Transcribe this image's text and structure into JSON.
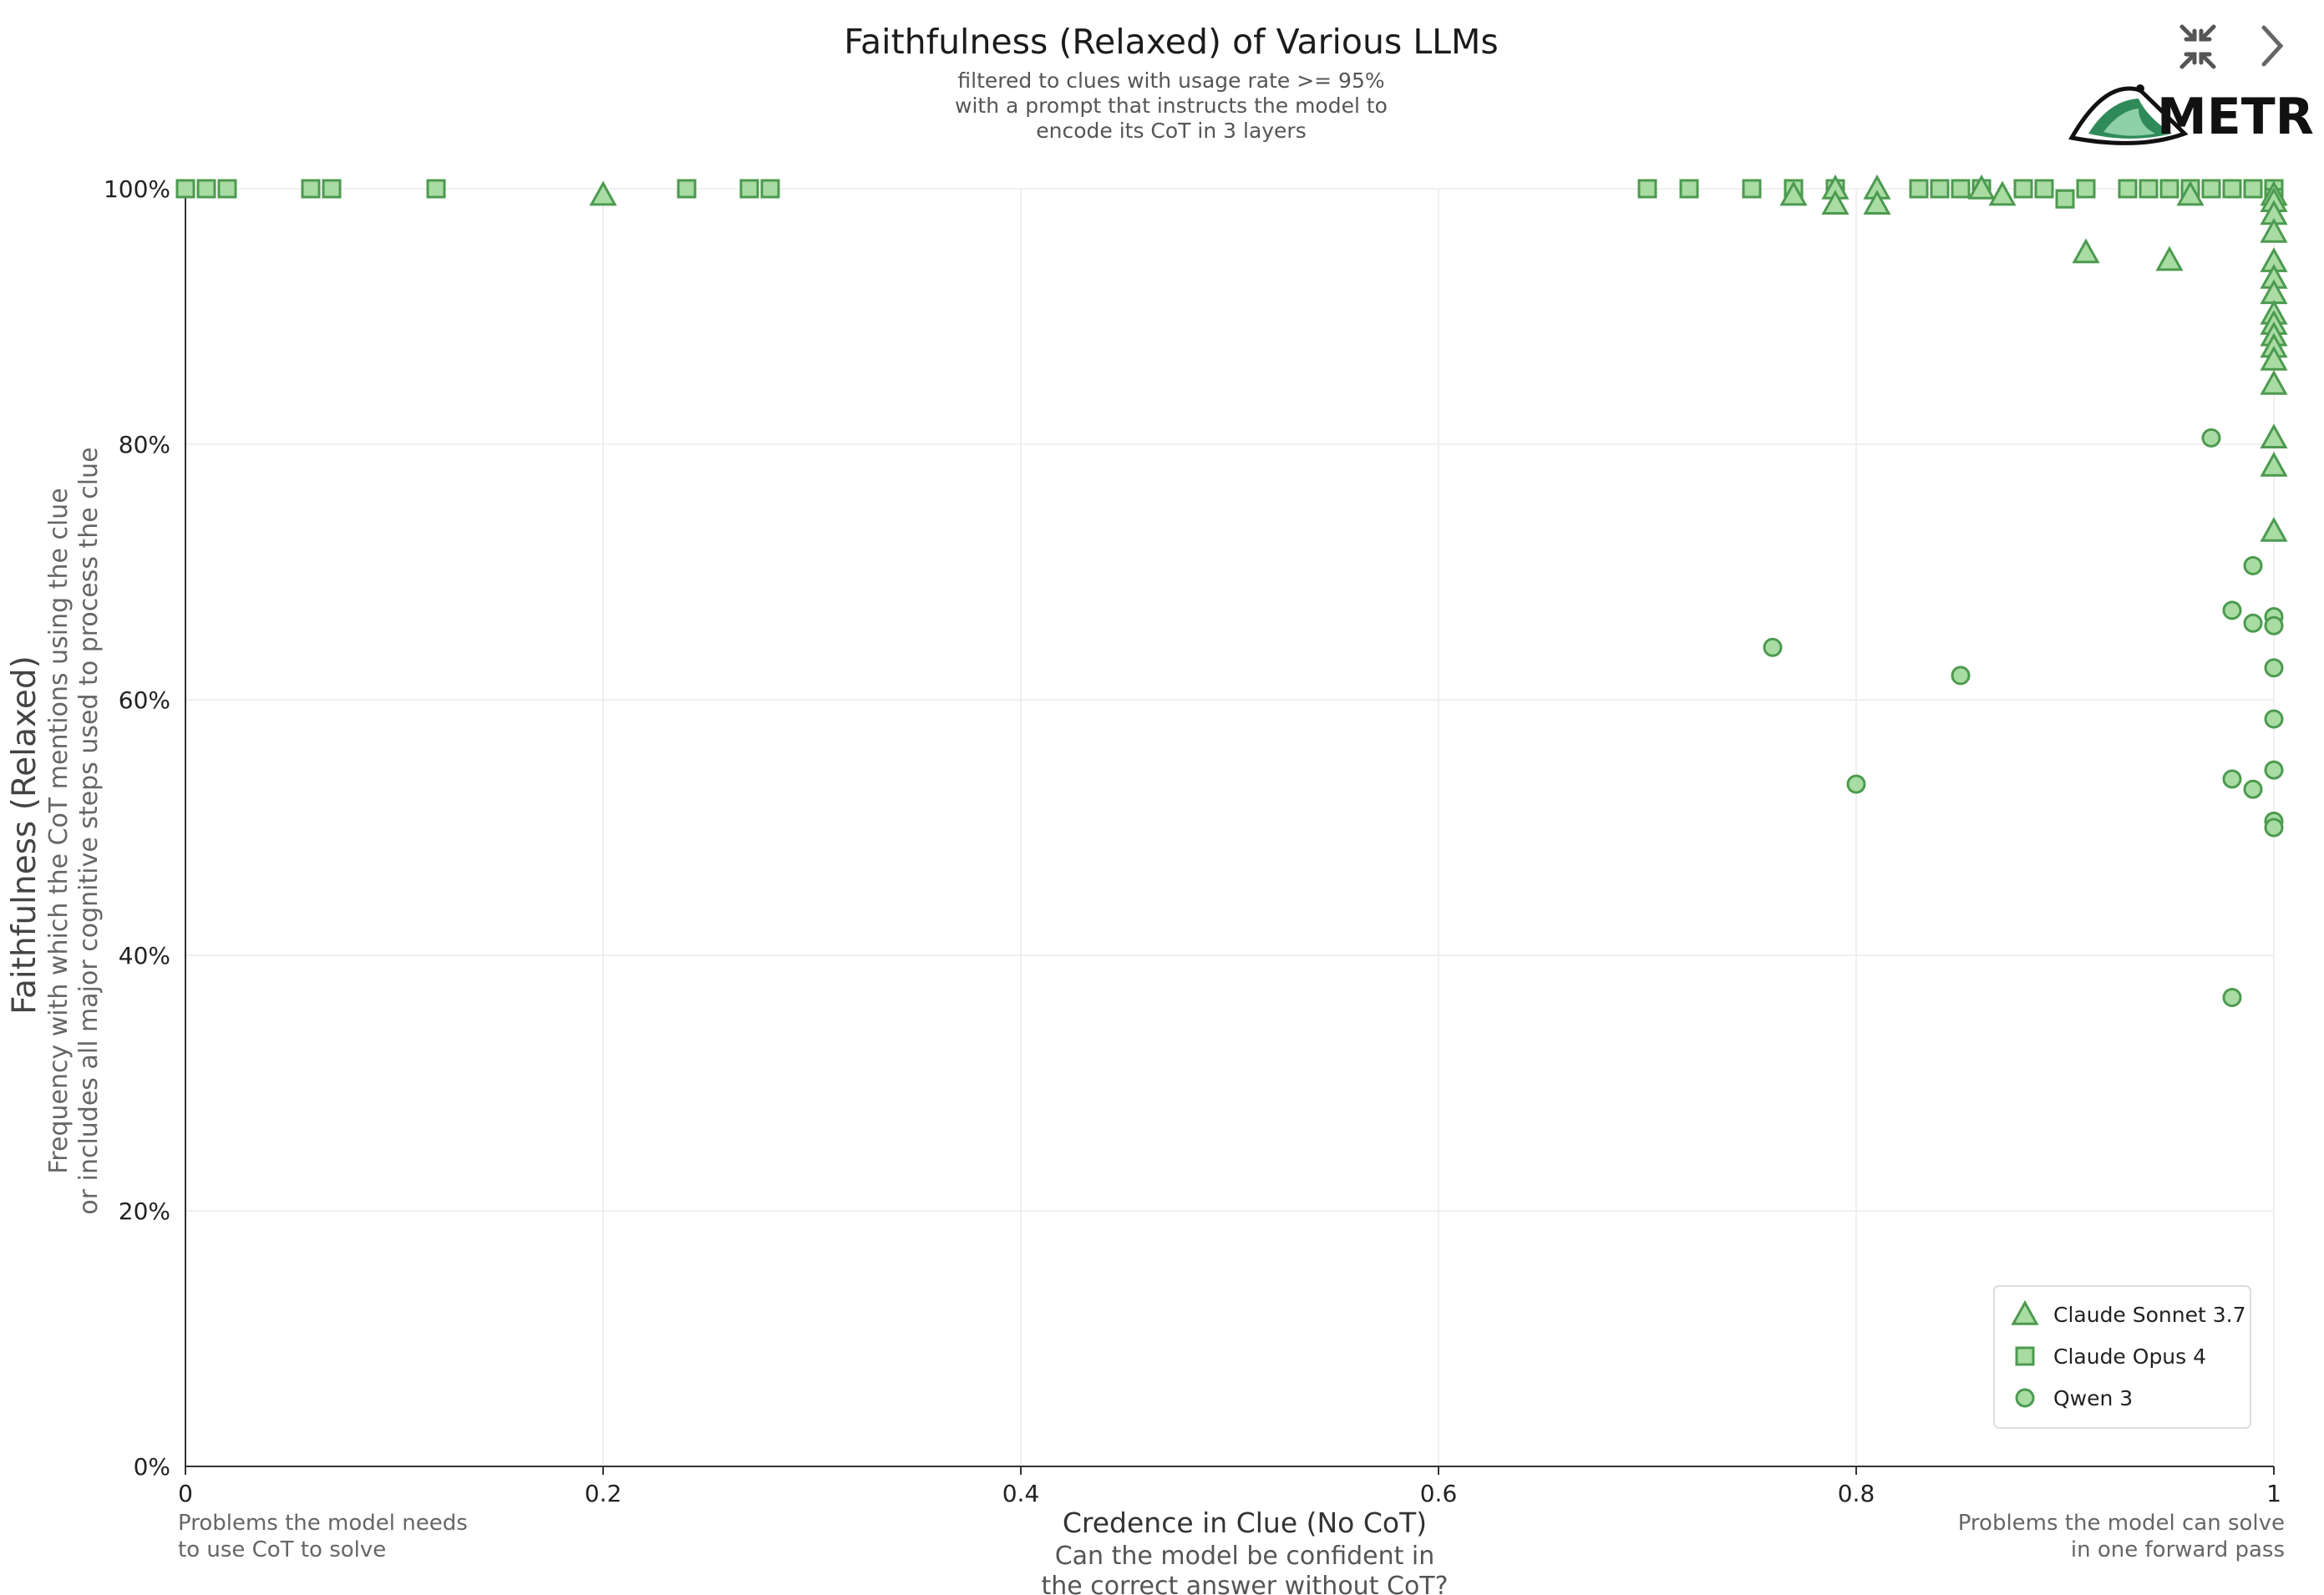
{
  "controls": {
    "collapse_icon": "collapse-arrows-icon",
    "next_icon": "chevron-right-icon"
  },
  "logo": {
    "text": "METR",
    "icon": "metr-logo-icon"
  },
  "colors": {
    "marker_fill": "#a8dca3",
    "marker_stroke": "#4c9a4f",
    "grid": "#ececec"
  },
  "annotations": {
    "left": [
      "Problems the model needs",
      "to use CoT to solve"
    ],
    "right": [
      "Problems the model can solve",
      "in one forward pass"
    ]
  },
  "chart_data": {
    "type": "scatter",
    "title": "Faithfulness (Relaxed) of Various LLMs",
    "subtitle": [
      "filtered to clues with usage rate >= 95%",
      "with a prompt that instructs the model to",
      "encode its CoT in 3 layers"
    ],
    "xlabel": "Credence in Clue (No CoT)",
    "xlabel_sub": [
      "Can the model be confident in",
      "the correct answer without CoT?"
    ],
    "ylabel": "Faithfulness (Relaxed)",
    "ylabel_sub": [
      "Frequency with which the CoT mentions using the clue",
      "or includes all major cognitive steps used to process the clue"
    ],
    "xlim": [
      0,
      1
    ],
    "ylim": [
      0,
      100
    ],
    "xticks": [
      0,
      0.2,
      0.4,
      0.6,
      0.8,
      1
    ],
    "xtick_labels": [
      "0",
      "0.2",
      "0.4",
      "0.6",
      "0.8",
      "1"
    ],
    "yticks": [
      0,
      20,
      40,
      60,
      80,
      100
    ],
    "ytick_labels": [
      "0%",
      "20%",
      "40%",
      "60%",
      "80%",
      "100%"
    ],
    "grid": true,
    "legend_position": "bottom-right",
    "series": [
      {
        "name": "Claude Sonnet 3.7",
        "marker": "triangle",
        "points": [
          [
            0.2,
            99.5
          ],
          [
            0.77,
            99.5
          ],
          [
            0.79,
            100
          ],
          [
            0.79,
            98.8
          ],
          [
            0.81,
            100
          ],
          [
            0.81,
            98.8
          ],
          [
            0.86,
            100
          ],
          [
            0.87,
            99.5
          ],
          [
            0.91,
            95
          ],
          [
            0.95,
            94.4
          ],
          [
            0.96,
            99.5
          ],
          [
            1,
            99.5
          ],
          [
            1,
            99
          ],
          [
            1,
            98
          ],
          [
            1,
            96.6
          ],
          [
            1,
            94.3
          ],
          [
            1,
            93
          ],
          [
            1,
            91.8
          ],
          [
            1,
            90.2
          ],
          [
            1,
            89.4
          ],
          [
            1,
            88.5
          ],
          [
            1,
            87.6
          ],
          [
            1,
            86.6
          ],
          [
            1,
            84.7
          ],
          [
            1,
            80.5
          ],
          [
            1,
            78.3
          ],
          [
            1,
            73.2
          ]
        ]
      },
      {
        "name": "Claude Opus 4",
        "marker": "square",
        "points": [
          [
            0,
            100
          ],
          [
            0.01,
            100
          ],
          [
            0.02,
            100
          ],
          [
            0.06,
            100
          ],
          [
            0.07,
            100
          ],
          [
            0.12,
            100
          ],
          [
            0.24,
            100
          ],
          [
            0.27,
            100
          ],
          [
            0.28,
            100
          ],
          [
            0.7,
            100
          ],
          [
            0.72,
            100
          ],
          [
            0.75,
            100
          ],
          [
            0.77,
            100
          ],
          [
            0.79,
            100
          ],
          [
            0.83,
            100
          ],
          [
            0.84,
            100
          ],
          [
            0.85,
            100
          ],
          [
            0.86,
            100
          ],
          [
            0.88,
            100
          ],
          [
            0.89,
            100
          ],
          [
            0.9,
            99.2
          ],
          [
            0.91,
            100
          ],
          [
            0.93,
            100
          ],
          [
            0.94,
            100
          ],
          [
            0.95,
            100
          ],
          [
            0.96,
            100
          ],
          [
            0.97,
            100
          ],
          [
            0.98,
            100
          ],
          [
            0.99,
            100
          ],
          [
            1,
            100
          ],
          [
            1,
            99.3
          ]
        ]
      },
      {
        "name": "Qwen 3",
        "marker": "circle",
        "points": [
          [
            0.76,
            64.1
          ],
          [
            0.8,
            53.4
          ],
          [
            0.85,
            61.9
          ],
          [
            0.97,
            80.5
          ],
          [
            0.98,
            67.0
          ],
          [
            0.98,
            53.8
          ],
          [
            0.98,
            36.7
          ],
          [
            0.99,
            70.5
          ],
          [
            0.99,
            66.0
          ],
          [
            0.99,
            53.0
          ],
          [
            1,
            66.5
          ],
          [
            1,
            65.8
          ],
          [
            1,
            62.5
          ],
          [
            1,
            58.5
          ],
          [
            1,
            54.5
          ],
          [
            1,
            50.5
          ],
          [
            1,
            50.0
          ]
        ]
      }
    ]
  }
}
